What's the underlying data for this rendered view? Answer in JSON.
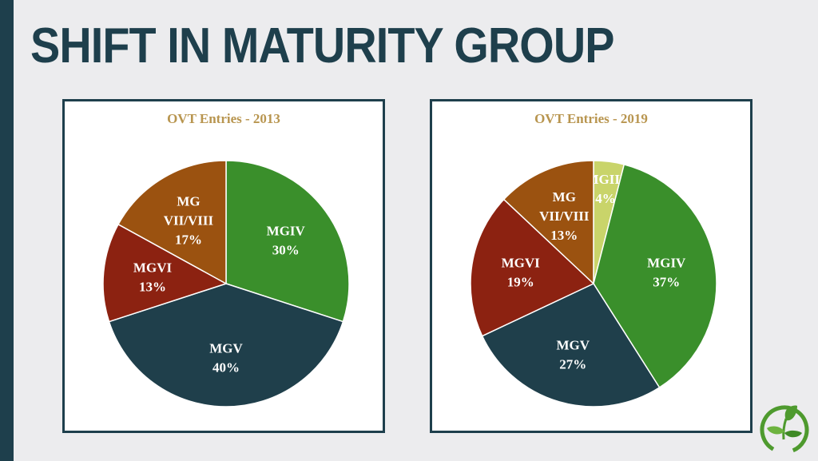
{
  "slide": {
    "title": "SHIFT IN MATURITY GROUP"
  },
  "chart_data": [
    {
      "type": "pie",
      "title": "OVT Entries - 2013",
      "start_angle_deg": 0,
      "slices": [
        {
          "lines": [
            "MGIV"
          ],
          "value": 30,
          "value_label": "30%",
          "color": "#3a8f2b"
        },
        {
          "lines": [
            "MGV"
          ],
          "value": 40,
          "value_label": "40%",
          "color": "#1f3f4b"
        },
        {
          "lines": [
            "MGVI"
          ],
          "value": 13,
          "value_label": "13%",
          "color": "#8c2211"
        },
        {
          "lines": [
            "MG",
            "VII/VIII"
          ],
          "value": 17,
          "value_label": "17%",
          "color": "#9b5210"
        }
      ]
    },
    {
      "type": "pie",
      "title": "OVT Entries - 2019",
      "start_angle_deg": 0,
      "slices": [
        {
          "lines": [
            "MGIII"
          ],
          "value": 4,
          "value_label": "4%",
          "color": "#c9d46a"
        },
        {
          "lines": [
            "MGIV"
          ],
          "value": 37,
          "value_label": "37%",
          "color": "#3a8f2b"
        },
        {
          "lines": [
            "MGV"
          ],
          "value": 27,
          "value_label": "27%",
          "color": "#1f3f4b"
        },
        {
          "lines": [
            "MGVI"
          ],
          "value": 19,
          "value_label": "19%",
          "color": "#8c2211"
        },
        {
          "lines": [
            "MG",
            "VII/VIII"
          ],
          "value": 13,
          "value_label": "13%",
          "color": "#9b5210"
        }
      ]
    }
  ],
  "logo": {
    "icon": "leaf-sprout-icon",
    "color": "#4e9a2e"
  }
}
